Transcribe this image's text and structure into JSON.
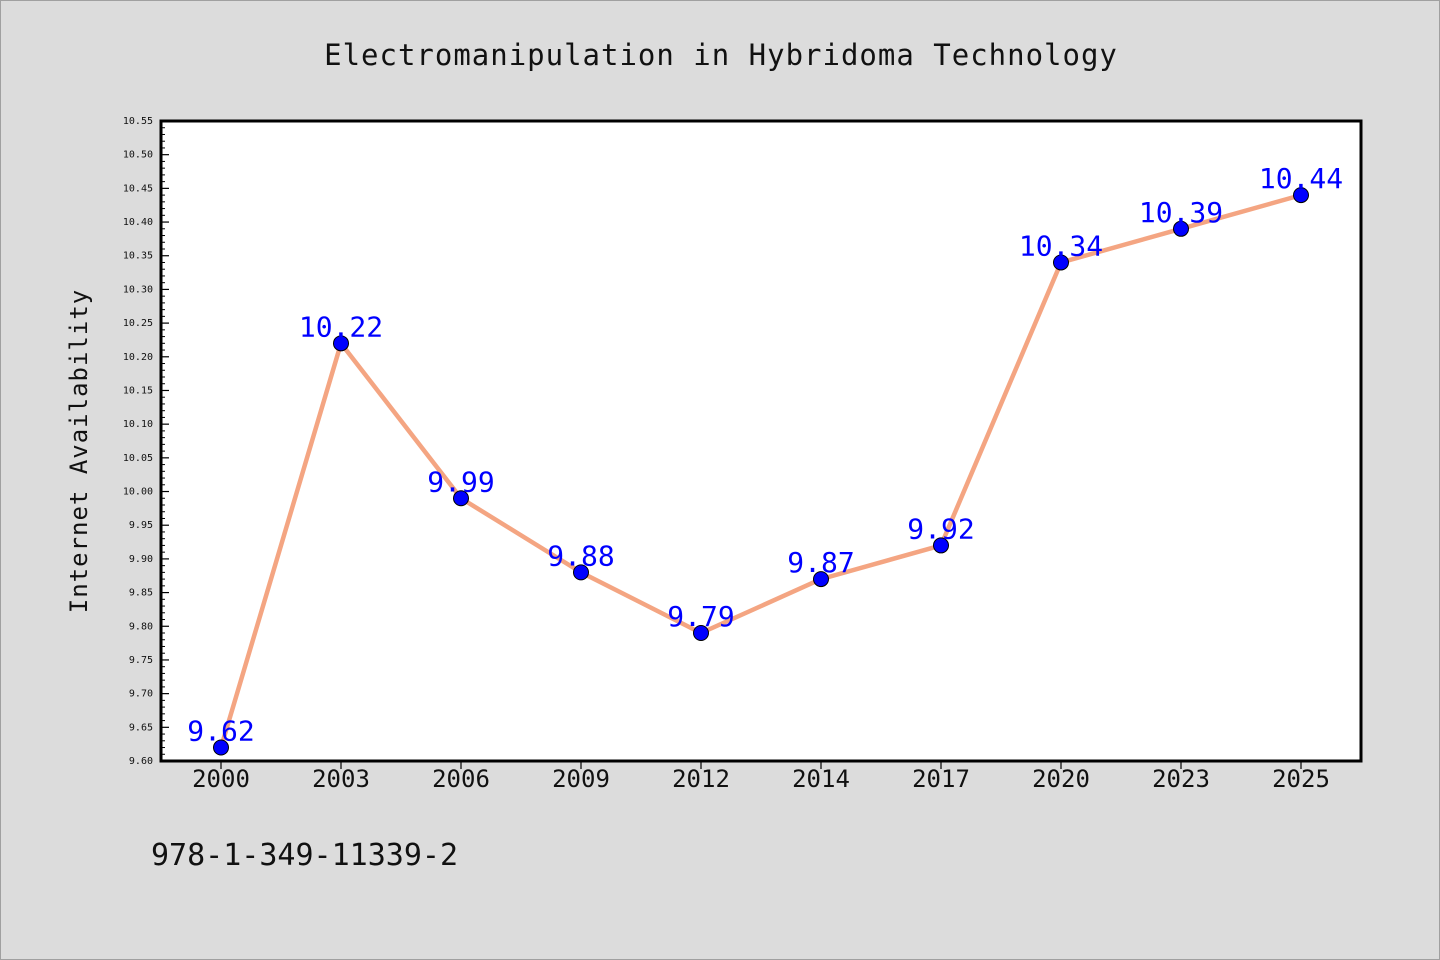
{
  "chart_data": {
    "type": "line",
    "title": "Electromanipulation in Hybridoma Technology",
    "xlabel": "",
    "ylabel": "Internet Availability",
    "categories": [
      "2000",
      "2003",
      "2006",
      "2009",
      "2012",
      "2014",
      "2017",
      "2020",
      "2023",
      "2025"
    ],
    "series": [
      {
        "values": [
          9.62,
          10.22,
          9.99,
          9.88,
          9.79,
          9.87,
          9.92,
          10.34,
          10.39,
          10.44
        ],
        "data_labels": [
          "9.62",
          "10.22",
          "9.99",
          "9.88",
          "9.79",
          "9.87",
          "9.92",
          "10.34",
          "10.39",
          "10.44"
        ]
      }
    ],
    "ylim": [
      9.6,
      10.55
    ],
    "yticks": [
      "9.60",
      "9.65",
      "9.70",
      "9.75",
      "9.80",
      "9.85",
      "9.90",
      "9.95",
      "10.00",
      "10.05",
      "10.10",
      "10.15",
      "10.20",
      "10.25",
      "10.30",
      "10.35",
      "10.40",
      "10.45",
      "10.50",
      "10.55"
    ],
    "grid": false,
    "legend": "none",
    "colors": {
      "line": "#f4a582",
      "marker": "#0000ff",
      "data_label": "#0000ff",
      "background": "#dcdcdc",
      "plot_background": "#ffffff"
    }
  },
  "footer": {
    "isbn": "978-1-349-11339-2"
  }
}
